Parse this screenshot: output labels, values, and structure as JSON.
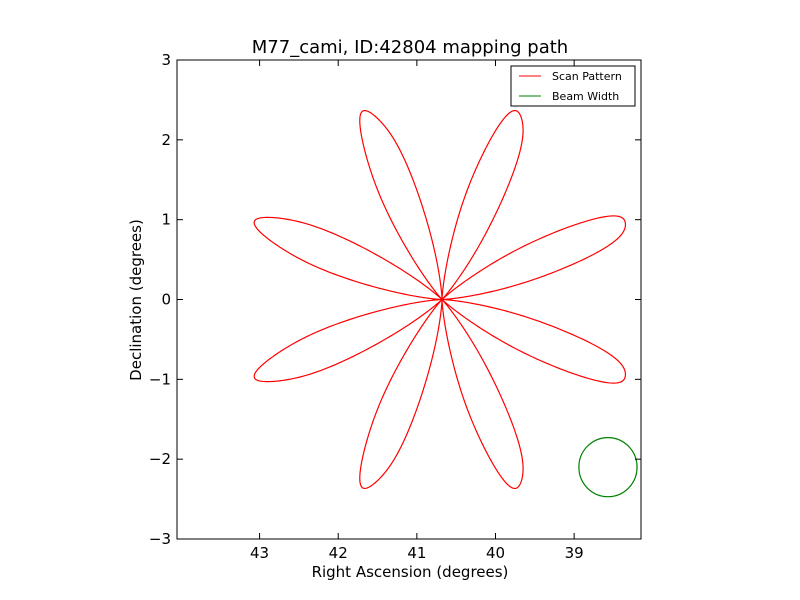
{
  "chart_data": {
    "type": "line",
    "title": "M77_cami, ID:42804 mapping path",
    "xlabel": "Right Ascension (degrees)",
    "ylabel": "Declination (degrees)",
    "xlim": [
      44.05,
      38.15
    ],
    "ylim": [
      -3,
      3
    ],
    "x_ticks": [
      43,
      42,
      41,
      40,
      39
    ],
    "y_ticks": [
      3,
      2,
      1,
      0,
      -1,
      -2,
      -3
    ],
    "x_tick_labels": [
      "43",
      "42",
      "41",
      "40",
      "39"
    ],
    "y_tick_labels": [
      "3",
      "2",
      "1",
      "0",
      "−1",
      "−2",
      "−3"
    ],
    "grid": false,
    "legend_position": "top-right",
    "series": [
      {
        "name": "Scan Pattern",
        "color": "#ff0000",
        "kind": "rosette",
        "center": [
          40.68,
          0.0
        ],
        "petals": 8,
        "petal_length": 2.55,
        "petal_halfwidth_deg": 6.9
      },
      {
        "name": "Beam Width",
        "color": "#008000",
        "kind": "circle",
        "center": [
          38.57,
          -2.1
        ],
        "radius": 0.37
      }
    ]
  }
}
